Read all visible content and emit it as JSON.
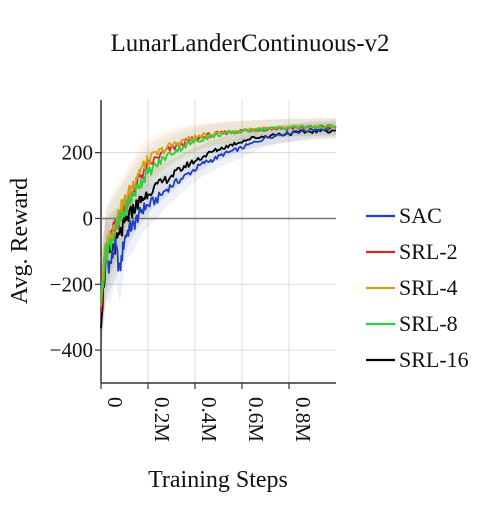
{
  "chart_data": {
    "type": "line",
    "title": "LunarLanderContinuous-v2",
    "xlabel": "Training Steps",
    "ylabel": "Avg. Reward",
    "xlim": [
      0,
      1000000
    ],
    "ylim": [
      -500,
      360
    ],
    "x_ticks": [
      0,
      200000,
      400000,
      600000,
      800000
    ],
    "x_tick_labels": [
      "0",
      "0.2M",
      "0.4M",
      "0.6M",
      "0.8M"
    ],
    "y_ticks": [
      -400,
      -200,
      0,
      200
    ],
    "y_tick_labels": [
      "−400",
      "−200",
      "0",
      "200"
    ],
    "grid": true,
    "legend_position": "right",
    "x": [
      0,
      20000,
      40000,
      60000,
      80000,
      100000,
      120000,
      140000,
      160000,
      180000,
      200000,
      240000,
      280000,
      320000,
      360000,
      400000,
      440000,
      480000,
      520000,
      560000,
      600000,
      650000,
      700000,
      750000,
      800000,
      850000,
      900000,
      950000,
      1000000
    ],
    "series": [
      {
        "name": "SAC",
        "color": "#1f3fbf",
        "values": [
          -260,
          -120,
          -140,
          -80,
          -160,
          -60,
          -30,
          -20,
          10,
          30,
          40,
          60,
          90,
          110,
          130,
          150,
          170,
          180,
          195,
          205,
          215,
          230,
          245,
          255,
          260,
          265,
          270,
          272,
          275
        ]
      },
      {
        "name": "SRL-2",
        "color": "#d62728",
        "values": [
          -250,
          -100,
          -60,
          -30,
          0,
          30,
          60,
          90,
          120,
          140,
          160,
          185,
          205,
          220,
          232,
          242,
          250,
          255,
          260,
          263,
          266,
          270,
          272,
          274,
          275,
          276,
          277,
          278,
          278
        ]
      },
      {
        "name": "SRL-4",
        "color": "#d4a017",
        "values": [
          -250,
          -90,
          -50,
          -10,
          20,
          50,
          80,
          110,
          140,
          160,
          175,
          198,
          215,
          228,
          238,
          246,
          252,
          257,
          261,
          264,
          267,
          270,
          272,
          274,
          276,
          277,
          278,
          279,
          279
        ]
      },
      {
        "name": "SRL-8",
        "color": "#2ecc40",
        "values": [
          -240,
          -110,
          -70,
          -40,
          -10,
          20,
          50,
          75,
          100,
          120,
          140,
          165,
          190,
          208,
          222,
          234,
          244,
          251,
          257,
          261,
          265,
          269,
          272,
          274,
          276,
          277,
          278,
          279,
          280
        ]
      },
      {
        "name": "SRL-16",
        "color": "#000000",
        "values": [
          -300,
          -130,
          -100,
          -80,
          -50,
          -20,
          10,
          30,
          50,
          60,
          80,
          100,
          120,
          140,
          160,
          175,
          190,
          205,
          215,
          225,
          235,
          245,
          250,
          255,
          258,
          262,
          265,
          266,
          268
        ]
      }
    ]
  }
}
